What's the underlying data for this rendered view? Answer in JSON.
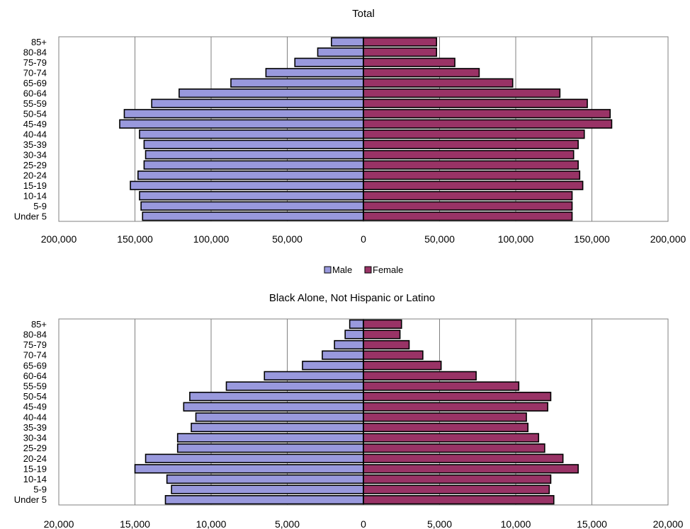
{
  "legend": {
    "male_label": "Male",
    "female_label": "Female"
  },
  "colors": {
    "male": "#9999dd",
    "female": "#993366",
    "grid": "#808080",
    "border": "#000000"
  },
  "chart_data": [
    {
      "type": "bar",
      "orientation": "horizontal",
      "title": "Total",
      "categories": [
        "Under 5",
        "5-9",
        "10-14",
        "15-19",
        "20-24",
        "25-29",
        "30-34",
        "35-39",
        "40-44",
        "45-49",
        "50-54",
        "55-59",
        "60-64",
        "65-69",
        "70-74",
        "75-79",
        "80-84",
        "85+"
      ],
      "series": [
        {
          "name": "Male",
          "values": [
            145000,
            146000,
            147000,
            153000,
            148000,
            144000,
            143000,
            144000,
            147000,
            160000,
            157000,
            139000,
            121000,
            87000,
            64000,
            45000,
            30000,
            21000
          ]
        },
        {
          "name": "Female",
          "values": [
            137000,
            137000,
            137000,
            144000,
            142000,
            141000,
            138000,
            141000,
            145000,
            163000,
            162000,
            147000,
            129000,
            98000,
            76000,
            60000,
            48000,
            48000
          ]
        }
      ],
      "xlim": [
        -200000,
        200000
      ],
      "xticks": [
        -200000,
        -150000,
        -100000,
        -50000,
        0,
        50000,
        100000,
        150000,
        200000
      ],
      "xtick_labels": [
        "200,000",
        "150,000",
        "100,000",
        "50,000",
        "0",
        "50,000",
        "100,000",
        "150,000",
        "200,000"
      ],
      "grid": true,
      "legend_position": "bottom"
    },
    {
      "type": "bar",
      "orientation": "horizontal",
      "title": "Black Alone, Not Hispanic or Latino",
      "categories": [
        "Under 5",
        "5-9",
        "10-14",
        "15-19",
        "20-24",
        "25-29",
        "30-34",
        "35-39",
        "40-44",
        "45-49",
        "50-54",
        "55-59",
        "60-64",
        "65-69",
        "70-74",
        "75-79",
        "80-84",
        "85+"
      ],
      "series": [
        {
          "name": "Male",
          "values": [
            13000,
            12600,
            12900,
            15000,
            14300,
            12200,
            12200,
            11300,
            11000,
            11800,
            11400,
            9000,
            6500,
            4000,
            2700,
            1900,
            1200,
            900
          ]
        },
        {
          "name": "Female",
          "values": [
            12500,
            12200,
            12300,
            14100,
            13100,
            11900,
            11500,
            10800,
            10700,
            12100,
            12300,
            10200,
            7400,
            5100,
            3900,
            3000,
            2400,
            2500
          ]
        }
      ],
      "xlim": [
        -20000,
        20000
      ],
      "xticks": [
        -20000,
        -15000,
        -10000,
        -5000,
        0,
        5000,
        10000,
        15000,
        20000
      ],
      "xtick_labels": [
        "20,000",
        "15,000",
        "10,000",
        "5,000",
        "0",
        "5,000",
        "10,000",
        "15,000",
        "20,000"
      ],
      "grid": true
    }
  ]
}
